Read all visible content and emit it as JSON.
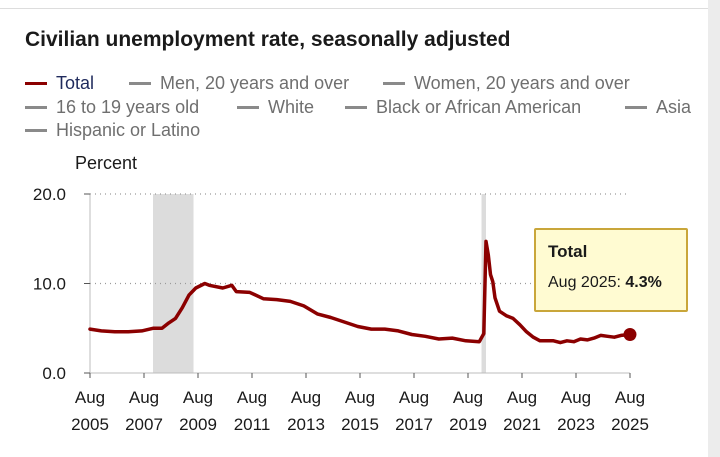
{
  "chart_data": {
    "type": "line",
    "title": "Civilian unemployment rate, seasonally adjusted",
    "ylabel": "Percent",
    "xlabel": "",
    "ylim": [
      0,
      20
    ],
    "yticks": [
      {
        "value": 0,
        "label": "0.0"
      },
      {
        "value": 10,
        "label": "10.0"
      },
      {
        "value": 20,
        "label": "20.0"
      }
    ],
    "xticks": [
      {
        "t": 2005.583,
        "month": "Aug",
        "year": "2005"
      },
      {
        "t": 2007.583,
        "month": "Aug",
        "year": "2007"
      },
      {
        "t": 2009.583,
        "month": "Aug",
        "year": "2009"
      },
      {
        "t": 2011.583,
        "month": "Aug",
        "year": "2011"
      },
      {
        "t": 2013.583,
        "month": "Aug",
        "year": "2013"
      },
      {
        "t": 2015.583,
        "month": "Aug",
        "year": "2015"
      },
      {
        "t": 2017.583,
        "month": "Aug",
        "year": "2017"
      },
      {
        "t": 2019.583,
        "month": "Aug",
        "year": "2019"
      },
      {
        "t": 2021.583,
        "month": "Aug",
        "year": "2021"
      },
      {
        "t": 2023.583,
        "month": "Aug",
        "year": "2023"
      },
      {
        "t": 2025.583,
        "month": "Aug",
        "year": "2025"
      }
    ],
    "xlim": [
      2005.583,
      2025.583
    ],
    "recessions": [
      {
        "start": 2007.917,
        "end": 2009.417
      },
      {
        "start": 2020.083,
        "end": 2020.25
      }
    ],
    "legend": [
      {
        "name": "Total",
        "active": true
      },
      {
        "name": "Men, 20 years and over",
        "active": false
      },
      {
        "name": "Women, 20 years and over",
        "active": false
      },
      {
        "name": "16 to 19 years old",
        "active": false
      },
      {
        "name": "White",
        "active": false
      },
      {
        "name": "Black or African American",
        "active": false
      },
      {
        "name": "Asia",
        "active": false
      },
      {
        "name": "Hispanic or Latino",
        "active": false
      }
    ],
    "series": [
      {
        "name": "Total",
        "color": "#8b0000",
        "points": [
          [
            2005.583,
            4.9
          ],
          [
            2006.0,
            4.7
          ],
          [
            2006.5,
            4.6
          ],
          [
            2007.0,
            4.6
          ],
          [
            2007.5,
            4.7
          ],
          [
            2007.917,
            5.0
          ],
          [
            2008.25,
            5.0
          ],
          [
            2008.5,
            5.6
          ],
          [
            2008.75,
            6.1
          ],
          [
            2009.0,
            7.3
          ],
          [
            2009.25,
            8.7
          ],
          [
            2009.5,
            9.5
          ],
          [
            2009.833,
            10.0
          ],
          [
            2010.0,
            9.8
          ],
          [
            2010.5,
            9.5
          ],
          [
            2010.833,
            9.8
          ],
          [
            2011.0,
            9.1
          ],
          [
            2011.5,
            9.0
          ],
          [
            2012.0,
            8.3
          ],
          [
            2012.5,
            8.2
          ],
          [
            2013.0,
            8.0
          ],
          [
            2013.5,
            7.5
          ],
          [
            2014.0,
            6.6
          ],
          [
            2014.5,
            6.2
          ],
          [
            2015.0,
            5.7
          ],
          [
            2015.5,
            5.2
          ],
          [
            2016.0,
            4.9
          ],
          [
            2016.5,
            4.9
          ],
          [
            2017.0,
            4.7
          ],
          [
            2017.5,
            4.3
          ],
          [
            2018.0,
            4.1
          ],
          [
            2018.5,
            3.8
          ],
          [
            2019.0,
            3.9
          ],
          [
            2019.5,
            3.6
          ],
          [
            2020.0,
            3.5
          ],
          [
            2020.167,
            4.4
          ],
          [
            2020.25,
            14.7
          ],
          [
            2020.333,
            13.2
          ],
          [
            2020.417,
            11.0
          ],
          [
            2020.5,
            10.2
          ],
          [
            2020.583,
            8.4
          ],
          [
            2020.75,
            6.9
          ],
          [
            2021.0,
            6.4
          ],
          [
            2021.25,
            6.1
          ],
          [
            2021.5,
            5.4
          ],
          [
            2021.75,
            4.6
          ],
          [
            2022.0,
            4.0
          ],
          [
            2022.25,
            3.6
          ],
          [
            2022.5,
            3.6
          ],
          [
            2022.75,
            3.6
          ],
          [
            2023.0,
            3.4
          ],
          [
            2023.25,
            3.6
          ],
          [
            2023.5,
            3.5
          ],
          [
            2023.75,
            3.8
          ],
          [
            2024.0,
            3.7
          ],
          [
            2024.25,
            3.9
          ],
          [
            2024.5,
            4.2
          ],
          [
            2024.75,
            4.1
          ],
          [
            2025.0,
            4.0
          ],
          [
            2025.25,
            4.2
          ],
          [
            2025.583,
            4.3
          ]
        ]
      }
    ],
    "tooltip": {
      "title": "Total",
      "label": "Aug 2025:",
      "value": "4.3%"
    }
  }
}
